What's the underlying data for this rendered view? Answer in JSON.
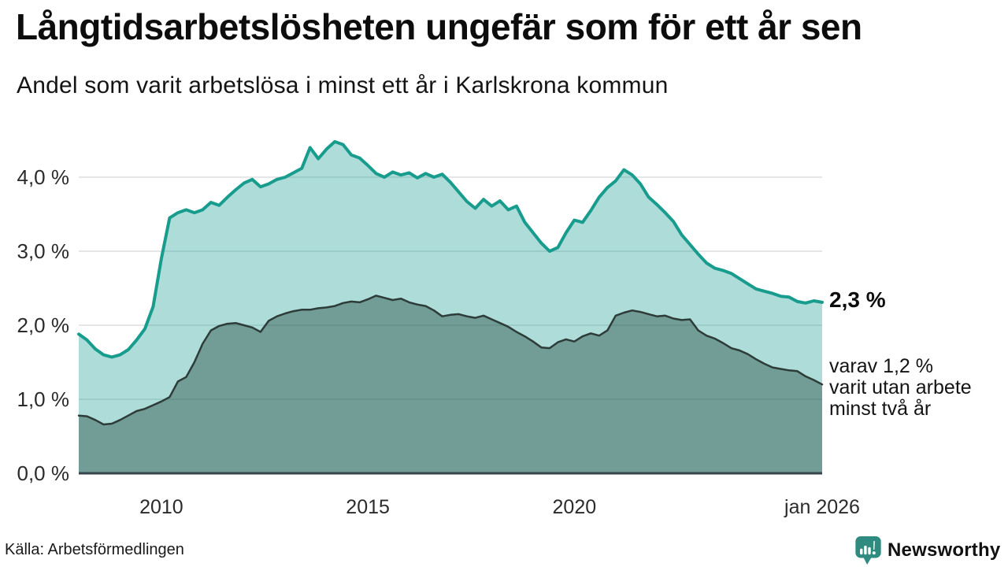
{
  "header": {
    "title": "Långtidsarbetslösheten ungefär som för ett år sen",
    "subtitle": "Andel som varit arbetslösa i minst ett år i Karlskrona kommun"
  },
  "annotations": {
    "end_value": "2,3 %",
    "two_year_lines": [
      "varav 1,2 %",
      "varit utan arbete",
      "minst två år"
    ]
  },
  "footer": {
    "source": "Källa: Arbetsförmedlingen",
    "brand": "Newsworthy"
  },
  "colors": {
    "accent_teal": "#179c8e",
    "dark_line": "#2d3c39",
    "axis": "#37444c",
    "grid": "#dcdee1",
    "logo_teal": "#2f8a80",
    "text": "#111111"
  },
  "chart_data": {
    "type": "area",
    "title": "Långtidsarbetslösheten ungefär som för ett år sen",
    "subtitle": "Andel som varit arbetslösa i minst ett år i Karlskrona kommun",
    "xlabel": "",
    "ylabel": "",
    "x_range": [
      2008,
      2026
    ],
    "ylim": [
      0,
      4.7
    ],
    "grid": "horizontal",
    "y_ticks": {
      "values": [
        0,
        1,
        2,
        3,
        4
      ],
      "labels": [
        "0,0 %",
        "1,0 %",
        "2,0 %",
        "3,0 %",
        "4,0 %"
      ]
    },
    "x_ticks": [
      {
        "year": 2010,
        "label": "2010"
      },
      {
        "year": 2015,
        "label": "2015"
      },
      {
        "year": 2020,
        "label": "2020"
      },
      {
        "year": 2026,
        "label": "jan 2026"
      }
    ],
    "series": [
      {
        "id": "unemployed-min-one-year",
        "end_label": "2,3 %",
        "line_color": "#179c8e",
        "line_width": 4,
        "fill_color": "rgba(23,156,143,0.35)",
        "start_year": 2008,
        "step_years": 0.2,
        "values": [
          1.88,
          1.8,
          1.68,
          1.6,
          1.57,
          1.6,
          1.67,
          1.8,
          1.95,
          2.25,
          2.9,
          3.45,
          3.52,
          3.56,
          3.52,
          3.56,
          3.66,
          3.62,
          3.73,
          3.83,
          3.92,
          3.97,
          3.87,
          3.91,
          3.97,
          4.0,
          4.06,
          4.12,
          4.4,
          4.25,
          4.38,
          4.48,
          4.44,
          4.3,
          4.26,
          4.16,
          4.05,
          4.0,
          4.07,
          4.03,
          4.06,
          3.99,
          4.05,
          4.0,
          4.04,
          3.93,
          3.8,
          3.67,
          3.58,
          3.7,
          3.61,
          3.68,
          3.56,
          3.61,
          3.39,
          3.25,
          3.11,
          3.0,
          3.05,
          3.25,
          3.42,
          3.39,
          3.55,
          3.73,
          3.86,
          3.95,
          4.1,
          4.03,
          3.91,
          3.73,
          3.63,
          3.52,
          3.4,
          3.22,
          3.09,
          2.96,
          2.84,
          2.77,
          2.74,
          2.7,
          2.63,
          2.56,
          2.49,
          2.46,
          2.43,
          2.39,
          2.38,
          2.32,
          2.3,
          2.33,
          2.31
        ]
      },
      {
        "id": "unemployed-min-two-years",
        "end_label": "varav 1,2 % varit utan arbete minst två år",
        "line_color": "#2d3c39",
        "line_width": 2.5,
        "fill_color": "rgba(31,68,62,0.42)",
        "start_year": 2008,
        "step_years": 0.2,
        "values": [
          0.78,
          0.77,
          0.72,
          0.66,
          0.67,
          0.72,
          0.78,
          0.84,
          0.87,
          0.92,
          0.97,
          1.03,
          1.24,
          1.3,
          1.5,
          1.75,
          1.93,
          1.99,
          2.02,
          2.03,
          2.0,
          1.97,
          1.91,
          2.06,
          2.12,
          2.16,
          2.19,
          2.21,
          2.21,
          2.23,
          2.24,
          2.26,
          2.3,
          2.32,
          2.31,
          2.35,
          2.4,
          2.37,
          2.34,
          2.36,
          2.31,
          2.28,
          2.26,
          2.2,
          2.12,
          2.14,
          2.15,
          2.12,
          2.1,
          2.13,
          2.08,
          2.03,
          1.98,
          1.91,
          1.85,
          1.78,
          1.7,
          1.69,
          1.77,
          1.81,
          1.78,
          1.85,
          1.89,
          1.86,
          1.93,
          2.13,
          2.17,
          2.2,
          2.18,
          2.15,
          2.12,
          2.13,
          2.09,
          2.07,
          2.08,
          1.93,
          1.86,
          1.82,
          1.76,
          1.69,
          1.66,
          1.61,
          1.54,
          1.48,
          1.43,
          1.41,
          1.39,
          1.38,
          1.31,
          1.26,
          1.2
        ]
      }
    ]
  }
}
